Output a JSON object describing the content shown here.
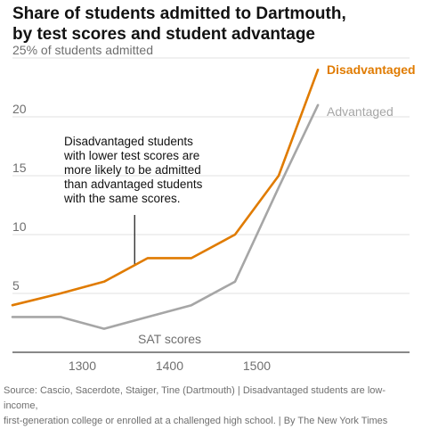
{
  "header": {
    "title_line1": "Share of students admitted to Dartmouth,",
    "title_line2": "by test scores and student advantage"
  },
  "footer": {
    "line1": "Source: Cascio, Sacerdote, Staiger, Tine (Dartmouth) | Disadvantaged students are low-income,",
    "line2": "first-generation college or enrolled at a challenged high school. | By The New York Times"
  },
  "colors": {
    "disadvantaged": "#e07b00",
    "advantaged": "#a6a6a6",
    "gridline": "#e2e2e2",
    "axis": "#121212"
  },
  "chart_data": {
    "type": "line",
    "title": "Share of students admitted to Dartmouth, by test scores and student advantage",
    "xlabel": "SAT scores",
    "ylabel": "% of students admitted",
    "ylim": [
      0,
      25
    ],
    "xlim": [
      1220,
      1575
    ],
    "grid": true,
    "legend": "direct labels at line ends (right)",
    "x_ticks": [
      "1300",
      "1400",
      "1500"
    ],
    "x_tick_values": [
      1300,
      1400,
      1500
    ],
    "y_ticks": [
      "25% of students admitted",
      "20",
      "15",
      "10",
      "5"
    ],
    "y_tick_values": [
      25,
      20,
      15,
      10,
      5
    ],
    "series": [
      {
        "name": "Disadvantaged",
        "color": "#e07b00",
        "x": [
          1220,
          1275,
          1325,
          1375,
          1425,
          1475,
          1525,
          1570
        ],
        "values": [
          4.0,
          5.0,
          6.0,
          8.0,
          8.0,
          10.0,
          15.0,
          24.0
        ]
      },
      {
        "name": "Advantaged",
        "color": "#a6a6a6",
        "x": [
          1220,
          1275,
          1325,
          1375,
          1425,
          1475,
          1525,
          1570
        ],
        "values": [
          3.0,
          3.0,
          2.0,
          3.0,
          4.0,
          6.0,
          14.0,
          21.0
        ]
      }
    ],
    "annotation": {
      "lines": [
        "Disadvantaged students",
        "with lower test scores are",
        "more likely to be admitted",
        "than advantaged students",
        "with the same scores."
      ],
      "pointer_x": 1360,
      "pointer_y": 7.4
    }
  }
}
